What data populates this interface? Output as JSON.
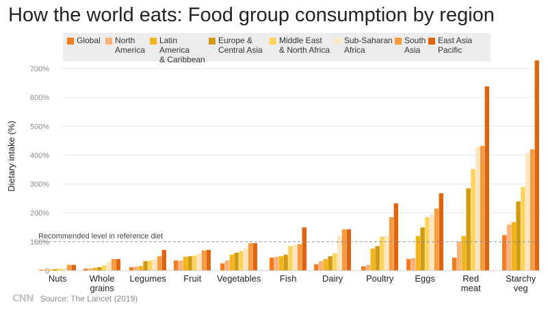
{
  "colors": {
    "Global": "#f47b20",
    "North America": "#f9b27a",
    "Latin America & Caribbean": "#f2b51a",
    "Europe & Central Asia": "#d19a11",
    "Middle East & North Africa": "#fcd45c",
    "Sub-Saharan Africa": "#fde5c2",
    "South Asia": "#f89a3e",
    "East Asia Pacific": "#e0630e"
  },
  "footer": {
    "logo": "CNN",
    "source": "Source: The Lancet (2019)"
  },
  "chart_data": {
    "type": "bar",
    "title": "How the world eats: Food group consumption by region",
    "ylabel": "Dietary intake (%)",
    "ylim": [
      0,
      700
    ],
    "yticks": [
      0,
      100,
      200,
      300,
      400,
      500,
      600,
      700
    ],
    "ytick_labels": [
      "0",
      "100%",
      "200%",
      "300%",
      "400%",
      "500%",
      "600%",
      "700%"
    ],
    "legend_position": "top",
    "reference_line": {
      "value": 100,
      "label": "Recommended level in reference diet"
    },
    "categories": [
      "Nuts",
      "Whole\ngrains",
      "Legumes",
      "Fruit",
      "Vegetables",
      "Fish",
      "Dairy",
      "Poultry",
      "Eggs",
      "Red\nmeat",
      "Starchy\nveg"
    ],
    "series": [
      {
        "name": "Global",
        "legend_label": "Global",
        "values": [
          [
            0,
            3
          ],
          [
            1,
            7
          ],
          [
            2,
            12
          ],
          [
            3,
            35
          ],
          [
            4,
            25
          ],
          [
            5,
            45
          ],
          [
            6,
            22
          ],
          [
            7,
            15
          ],
          [
            8,
            40
          ],
          [
            9,
            45
          ],
          [
            10,
            123
          ]
        ]
      },
      {
        "name": "North America",
        "legend_label": "North\nAmerica",
        "values": [
          [
            0,
            3
          ],
          [
            1,
            8
          ],
          [
            2,
            14
          ],
          [
            3,
            35
          ],
          [
            4,
            35
          ],
          [
            5,
            48
          ],
          [
            6,
            33
          ],
          [
            7,
            20
          ],
          [
            8,
            43
          ],
          [
            9,
            100
          ],
          [
            10,
            160
          ]
        ]
      },
      {
        "name": "Latin America & Caribbean",
        "legend_label": "Latin America\n& Caribbean",
        "values": [
          [
            0,
            4
          ],
          [
            1,
            10
          ],
          [
            2,
            16
          ],
          [
            3,
            48
          ],
          [
            4,
            55
          ],
          [
            5,
            50
          ],
          [
            6,
            40
          ],
          [
            7,
            77
          ],
          [
            8,
            120
          ],
          [
            9,
            120
          ],
          [
            10,
            168
          ]
        ]
      },
      {
        "name": "Europe & Central Asia",
        "legend_label": "Europe &\nCentral Asia",
        "values": [
          [
            0,
            5
          ],
          [
            1,
            12
          ],
          [
            2,
            33
          ],
          [
            3,
            50
          ],
          [
            4,
            62
          ],
          [
            5,
            55
          ],
          [
            6,
            50
          ],
          [
            7,
            85
          ],
          [
            8,
            150
          ],
          [
            9,
            285
          ],
          [
            10,
            240
          ]
        ]
      },
      {
        "name": "Middle East & North Africa",
        "legend_label": "Middle East\n& North Africa",
        "values": [
          [
            0,
            7
          ],
          [
            1,
            18
          ],
          [
            2,
            35
          ],
          [
            3,
            52
          ],
          [
            4,
            68
          ],
          [
            5,
            85
          ],
          [
            6,
            60
          ],
          [
            7,
            118
          ],
          [
            8,
            185
          ],
          [
            9,
            352
          ],
          [
            10,
            290
          ]
        ]
      },
      {
        "name": "Sub-Saharan Africa",
        "legend_label": "Sub-Saharan\nAfrica",
        "values": [
          [
            0,
            10
          ],
          [
            1,
            30
          ],
          [
            2,
            38
          ],
          [
            3,
            60
          ],
          [
            4,
            78
          ],
          [
            5,
            90
          ],
          [
            6,
            120
          ],
          [
            7,
            120
          ],
          [
            8,
            195
          ],
          [
            9,
            428
          ],
          [
            10,
            405
          ]
        ]
      },
      {
        "name": "South Asia",
        "legend_label": "South\nAsia",
        "values": [
          [
            0,
            20
          ],
          [
            1,
            40
          ],
          [
            2,
            50
          ],
          [
            3,
            70
          ],
          [
            4,
            95
          ],
          [
            5,
            92
          ],
          [
            6,
            143
          ],
          [
            7,
            185
          ],
          [
            8,
            215
          ],
          [
            9,
            432
          ],
          [
            10,
            420
          ]
        ]
      },
      {
        "name": "East Asia Pacific",
        "legend_label": "East Asia\nPacific",
        "values": [
          [
            0,
            20
          ],
          [
            1,
            40
          ],
          [
            2,
            72
          ],
          [
            3,
            72
          ],
          [
            4,
            95
          ],
          [
            5,
            150
          ],
          [
            6,
            143
          ],
          [
            7,
            233
          ],
          [
            8,
            268
          ],
          [
            9,
            638
          ],
          [
            10,
            728
          ]
        ]
      }
    ]
  }
}
